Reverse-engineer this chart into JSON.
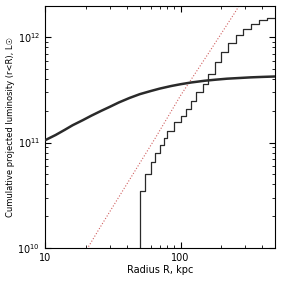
{
  "title": "",
  "xlabel": "Radius R, kpc",
  "ylabel": "Cumulative projected luminosity (r<R), L☉",
  "xlim": [
    10,
    500
  ],
  "ylim": [
    10000000000.0,
    2000000000000.0
  ],
  "background_color": "#ffffff",
  "ngc1275_r": [
    10,
    12,
    14,
    16,
    19,
    22,
    26,
    30,
    35,
    42,
    50,
    60,
    70,
    85,
    100,
    120,
    150,
    180,
    220,
    270,
    330,
    400,
    500
  ],
  "ngc1275_L": [
    105000000000.0,
    118000000000.0,
    132000000000.0,
    146000000000.0,
    163000000000.0,
    180000000000.0,
    200000000000.0,
    218000000000.0,
    240000000000.0,
    265000000000.0,
    288000000000.0,
    308000000000.0,
    325000000000.0,
    344000000000.0,
    358000000000.0,
    372000000000.0,
    386000000000.0,
    395000000000.0,
    404000000000.0,
    410000000000.0,
    416000000000.0,
    420000000000.0,
    424000000000.0
  ],
  "hist_r": [
    50,
    50,
    55,
    55,
    60,
    60,
    65,
    65,
    70,
    70,
    75,
    75,
    80,
    80,
    90,
    90,
    100,
    100,
    110,
    110,
    120,
    120,
    130,
    130,
    145,
    145,
    160,
    160,
    180,
    180,
    200,
    200,
    225,
    225,
    255,
    255,
    290,
    290,
    330,
    330,
    380,
    380,
    430,
    430,
    500
  ],
  "hist_L": [
    0,
    35000000000.0,
    35000000000.0,
    50000000000.0,
    50000000000.0,
    65000000000.0,
    65000000000.0,
    80000000000.0,
    80000000000.0,
    95000000000.0,
    95000000000.0,
    110000000000.0,
    110000000000.0,
    130000000000.0,
    130000000000.0,
    155000000000.0,
    155000000000.0,
    180000000000.0,
    180000000000.0,
    210000000000.0,
    210000000000.0,
    250000000000.0,
    250000000000.0,
    300000000000.0,
    300000000000.0,
    360000000000.0,
    360000000000.0,
    450000000000.0,
    450000000000.0,
    580000000000.0,
    580000000000.0,
    720000000000.0,
    720000000000.0,
    880000000000.0,
    880000000000.0,
    1050000000000.0,
    1050000000000.0,
    1200000000000.0,
    1200000000000.0,
    1350000000000.0,
    1350000000000.0,
    1450000000000.0,
    1450000000000.0,
    1520000000000.0,
    1520000000000.0
  ],
  "dotted_r": [
    15,
    25,
    40,
    65,
    100,
    160,
    250,
    400,
    500
  ],
  "dotted_L": [
    5000000000.0,
    15000000000.0,
    40000000000.0,
    110000000000.0,
    280000000000.0,
    700000000000.0,
    1700000000000.0,
    4500000000000.0,
    8000000000000.0
  ],
  "ngc1275_color": "#2a2a2a",
  "hist_color": "#2a2a2a",
  "dotted_color": "#d06060",
  "ngc1275_lw": 1.8,
  "hist_lw": 0.9,
  "dotted_lw": 0.8
}
